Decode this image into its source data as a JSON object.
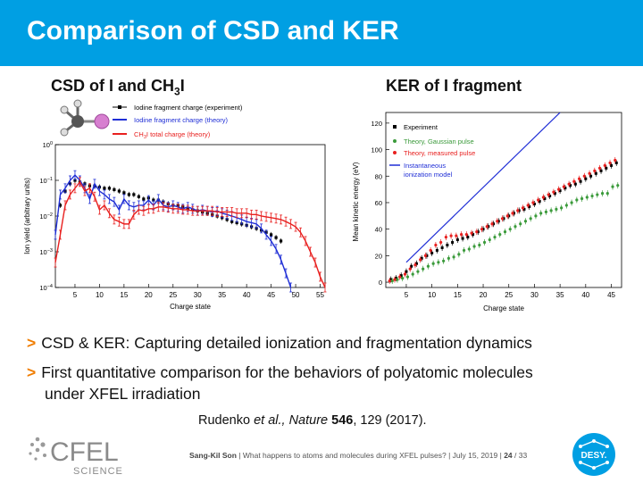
{
  "title": "Comparison of CSD and KER",
  "csd": {
    "heading_main": "CSD of I and CH",
    "heading_sub": "3",
    "heading_end": "I",
    "ch3i_label_main": "CH",
    "ch3i_label_sub": "3",
    "ch3i_label_end": "I total charge (theory)"
  },
  "ker": {
    "heading": "KER of I fragment"
  },
  "bullets": [
    "CSD & KER: Capturing detailed ionization and fragmentation dynamics",
    "First quantitative comparison for the behaviors of polyatomic molecules",
    "under XFEL irradiation"
  ],
  "bullet_marker": ">",
  "citation": {
    "authors": "Rudenko ",
    "etal": "et al., Nature ",
    "volume": "546",
    "rest": ", 129 (2017)."
  },
  "footer": {
    "speaker": "Sang-Kil Son",
    "talk": "| What happens to atoms and molecules during XFEL pulses? | July 15, 2019 |",
    "page": "24",
    "total": "/ 33"
  },
  "logos": {
    "cfel_text": "CFEL",
    "cfel_sub": "SCIENCE",
    "desy_text": "DESY."
  },
  "colors": {
    "header": "#009fe3",
    "bullet": "#f07d00",
    "experiment": "#000000",
    "theory_csd": "#1f2ed6",
    "theory_ch3i": "#e8201f",
    "gauss": "#3a9a3a",
    "measured": "#e8201f",
    "instantaneous": "#1f2ed6"
  },
  "chart_data": [
    {
      "type": "line",
      "xlabel": "Charge state",
      "ylabel": "Ion yield  (arbitrary units)",
      "xlim": [
        1,
        56
      ],
      "ylim_log10": [
        -4,
        0
      ],
      "yscale": "log",
      "xticks": [
        5,
        10,
        15,
        20,
        25,
        30,
        35,
        40,
        45,
        50,
        55
      ],
      "yticks": [
        {
          "label": "10",
          "exp": "0"
        },
        {
          "label": "10",
          "exp": "−1"
        },
        {
          "label": "10",
          "exp": "−2"
        },
        {
          "label": "10",
          "exp": "−3"
        },
        {
          "label": "10",
          "exp": "−4"
        }
      ],
      "legend": "top-left",
      "series": [
        {
          "name": "Iodine fragment charge (experiment)",
          "style": "points",
          "x": [
            2,
            3,
            4,
            5,
            6,
            7,
            8,
            9,
            10,
            11,
            12,
            13,
            14,
            15,
            16,
            17,
            18,
            19,
            20,
            21,
            22,
            23,
            24,
            25,
            26,
            27,
            28,
            29,
            30,
            31,
            32,
            33,
            34,
            35,
            36,
            37,
            38,
            39,
            40,
            41,
            42,
            43,
            44,
            45,
            46,
            47
          ],
          "y": [
            0.02,
            0.05,
            0.08,
            0.1,
            0.09,
            0.08,
            0.07,
            0.07,
            0.065,
            0.06,
            0.06,
            0.055,
            0.05,
            0.045,
            0.04,
            0.04,
            0.035,
            0.03,
            0.032,
            0.028,
            0.028,
            0.025,
            0.022,
            0.02,
            0.02,
            0.018,
            0.016,
            0.015,
            0.014,
            0.013,
            0.012,
            0.011,
            0.01,
            0.009,
            0.008,
            0.007,
            0.0065,
            0.006,
            0.0055,
            0.005,
            0.0045,
            0.004,
            0.0035,
            0.003,
            0.0025,
            0.002
          ]
        },
        {
          "name": "Iodine fragment charge (theory)",
          "style": "line",
          "x": [
            1,
            2,
            3,
            4,
            5,
            6,
            7,
            8,
            9,
            10,
            11,
            12,
            13,
            14,
            15,
            16,
            17,
            18,
            19,
            20,
            21,
            22,
            23,
            24,
            25,
            26,
            27,
            28,
            29,
            30,
            31,
            32,
            33,
            34,
            35,
            36,
            37,
            38,
            39,
            40,
            41,
            42,
            43,
            44,
            45,
            46,
            47,
            48,
            49
          ],
          "y": [
            0.003,
            0.04,
            0.06,
            0.1,
            0.14,
            0.1,
            0.06,
            0.03,
            0.08,
            0.05,
            0.04,
            0.03,
            0.025,
            0.015,
            0.03,
            0.02,
            0.018,
            0.02,
            0.02,
            0.028,
            0.02,
            0.03,
            0.02,
            0.018,
            0.02,
            0.018,
            0.016,
            0.018,
            0.016,
            0.014,
            0.015,
            0.014,
            0.013,
            0.014,
            0.012,
            0.011,
            0.01,
            0.009,
            0.008,
            0.007,
            0.0065,
            0.006,
            0.0045,
            0.003,
            0.002,
            0.0012,
            0.0006,
            0.00025,
            0.0001
          ]
        },
        {
          "name": "CH3I total charge (theory)",
          "style": "line",
          "x": [
            1,
            2,
            3,
            4,
            5,
            6,
            7,
            8,
            9,
            10,
            11,
            12,
            13,
            14,
            15,
            16,
            17,
            18,
            19,
            20,
            21,
            22,
            23,
            24,
            25,
            26,
            27,
            28,
            29,
            30,
            31,
            32,
            33,
            34,
            35,
            36,
            37,
            38,
            39,
            40,
            41,
            42,
            43,
            44,
            45,
            46,
            47,
            48,
            49,
            50,
            51,
            52,
            53,
            54,
            55,
            56
          ],
          "y": [
            0.0005,
            0.003,
            0.02,
            0.04,
            0.06,
            0.09,
            0.05,
            0.06,
            0.035,
            0.015,
            0.02,
            0.012,
            0.008,
            0.007,
            0.006,
            0.006,
            0.011,
            0.015,
            0.014,
            0.016,
            0.016,
            0.018,
            0.018,
            0.017,
            0.016,
            0.016,
            0.015,
            0.015,
            0.014,
            0.014,
            0.014,
            0.014,
            0.014,
            0.013,
            0.013,
            0.013,
            0.013,
            0.012,
            0.012,
            0.012,
            0.011,
            0.011,
            0.01,
            0.0095,
            0.009,
            0.0085,
            0.008,
            0.007,
            0.006,
            0.005,
            0.0035,
            0.002,
            0.001,
            0.0005,
            0.0002,
            0.0001
          ]
        }
      ]
    },
    {
      "type": "scatter",
      "xlabel": "Charge state",
      "ylabel": "Mean kinetic energy (eV)",
      "xlim": [
        1,
        47
      ],
      "ylim": [
        -4,
        128
      ],
      "xticks": [
        5,
        10,
        15,
        20,
        25,
        30,
        35,
        40,
        45
      ],
      "yticks": [
        0,
        20,
        40,
        60,
        80,
        100,
        120
      ],
      "legend": "top-left",
      "series": [
        {
          "name": "Experiment",
          "style": "points",
          "x": [
            2,
            3,
            4,
            5,
            6,
            7,
            8,
            9,
            10,
            11,
            12,
            13,
            14,
            15,
            16,
            17,
            18,
            19,
            20,
            21,
            22,
            23,
            24,
            25,
            26,
            27,
            28,
            29,
            30,
            31,
            32,
            33,
            34,
            35,
            36,
            37,
            38,
            39,
            40,
            41,
            42,
            43,
            44,
            45,
            46
          ],
          "y": [
            2,
            3,
            5,
            8,
            12,
            14,
            18,
            20,
            22,
            24,
            26,
            28,
            30,
            32,
            33,
            34,
            36,
            38,
            40,
            42,
            44,
            46,
            48,
            50,
            52,
            54,
            55,
            57,
            59,
            61,
            63,
            65,
            67,
            69,
            71,
            73,
            74,
            76,
            78,
            80,
            82,
            84,
            86,
            88,
            90
          ]
        },
        {
          "name": "Theory, Gaussian pulse",
          "style": "points",
          "x": [
            2,
            3,
            4,
            5,
            6,
            7,
            8,
            9,
            10,
            11,
            12,
            13,
            14,
            15,
            16,
            17,
            18,
            19,
            20,
            21,
            22,
            23,
            24,
            25,
            26,
            27,
            28,
            29,
            30,
            31,
            32,
            33,
            34,
            35,
            36,
            37,
            38,
            39,
            40,
            41,
            42,
            43,
            44,
            45,
            46
          ],
          "y": [
            1,
            2,
            3,
            4,
            6,
            8,
            10,
            12,
            14,
            15,
            16,
            18,
            19,
            21,
            24,
            25,
            27,
            28,
            30,
            32,
            34,
            36,
            38,
            40,
            42,
            44,
            46,
            48,
            50,
            52,
            53,
            54,
            55,
            56,
            58,
            60,
            62,
            63,
            64,
            65,
            66,
            67,
            67,
            72,
            73
          ]
        },
        {
          "name": "Theory, measured pulse",
          "style": "points",
          "x": [
            2,
            3,
            4,
            5,
            6,
            7,
            8,
            9,
            10,
            11,
            12,
            13,
            14,
            15,
            16,
            17,
            18,
            19,
            20,
            21,
            22,
            23,
            24,
            25,
            26,
            27,
            28,
            29,
            30,
            31,
            32,
            33,
            34,
            35,
            36,
            37,
            38,
            39,
            40,
            41,
            42,
            43,
            44,
            45,
            46
          ],
          "y": [
            1,
            2,
            4,
            6,
            10,
            13,
            17,
            20,
            24,
            28,
            30,
            34,
            35,
            35,
            36,
            36,
            37,
            38,
            40,
            42,
            44,
            46,
            48,
            50,
            52,
            54,
            56,
            58,
            60,
            62,
            64,
            66,
            68,
            70,
            72,
            74,
            76,
            78,
            80,
            82,
            84,
            86,
            88,
            90,
            92
          ]
        },
        {
          "name": "Instantaneous ionization model",
          "name_line1": "Instantaneous",
          "name_line2": "ionization model",
          "style": "line",
          "x": [
            5,
            35
          ],
          "y": [
            15,
            128
          ]
        }
      ]
    }
  ]
}
